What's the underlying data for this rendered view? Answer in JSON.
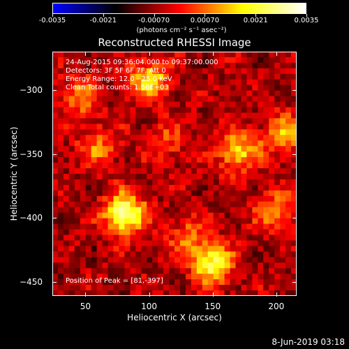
{
  "colorbar": {
    "colors": [
      "#0000ff",
      "#000000",
      "#ff0000",
      "#ffff00",
      "#ffffff"
    ],
    "tick_labels": [
      "-0.0035",
      "-0.0021",
      "-0.00070",
      "0.00070",
      "0.0021",
      "0.0035"
    ],
    "units_label": "(photons cm⁻² s⁻¹ asec⁻²)"
  },
  "chart_data": {
    "type": "heatmap",
    "title": "Reconstructed RHESSI Image",
    "xlabel": "Heliocentric X (arcsec)",
    "ylabel": "Heliocentric Y (arcsec)",
    "xlim": [
      24,
      216
    ],
    "ylim": [
      -461,
      -270
    ],
    "xticks": [
      50,
      100,
      150,
      200
    ],
    "yticks": [
      -300,
      -350,
      -400,
      -450
    ],
    "xtick_labels": [
      "50",
      "100",
      "150",
      "200"
    ],
    "ytick_labels": [
      "−300",
      "−350",
      "−400",
      "−450"
    ],
    "zlim": [
      -0.0035,
      0.0035
    ],
    "colormap": "blue-black-red-yellow-white",
    "sources": [
      {
        "x": 81,
        "y": -397,
        "flux": 0.0035
      },
      {
        "x": 150,
        "y": -436,
        "flux": 0.0028
      },
      {
        "x": 100,
        "y": -293,
        "flux": 0.0024
      },
      {
        "x": 170,
        "y": -348,
        "flux": 0.0022
      },
      {
        "x": 205,
        "y": -335,
        "flux": 0.0018
      },
      {
        "x": 45,
        "y": -305,
        "flux": 0.0016
      },
      {
        "x": 60,
        "y": -345,
        "flux": 0.0014
      },
      {
        "x": 200,
        "y": -395,
        "flux": 0.0017
      },
      {
        "x": 130,
        "y": -415,
        "flux": 0.0013
      },
      {
        "x": 115,
        "y": -340,
        "flux": 0.001
      }
    ],
    "annotations": [
      "24-Aug-2015 09:36:04.000 to 09:37:00.000",
      "Detectors: 3F 5F 6F 7F, Att 0",
      "Energy Range: 12.0 - 25.0 keV",
      "Clean      Total counts: 1.56E+03"
    ],
    "peak_label": "Position of Peak = [81,-397]"
  },
  "datestamp": "8-Jun-2019 03:18"
}
